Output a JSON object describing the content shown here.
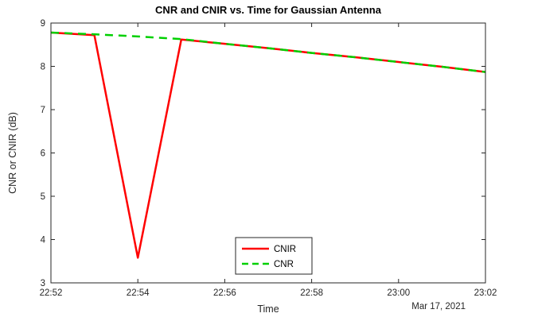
{
  "chart_data": {
    "type": "line",
    "title": "CNR and CNIR vs. Time for Gaussian Antenna",
    "xlabel": "Time",
    "ylabel": "CNR or CNIR (dB)",
    "date_annotation": "Mar 17, 2021",
    "xlim": [
      0,
      10
    ],
    "ylim": [
      3,
      9
    ],
    "grid": "off",
    "x_minutes": [
      0,
      1,
      2,
      3,
      4,
      5,
      6,
      7,
      8,
      9,
      10
    ],
    "x_tick_values": [
      0,
      2,
      4,
      6,
      8,
      10
    ],
    "x_tick_labels": [
      "22:52",
      "22:54",
      "22:56",
      "22:58",
      "23:00",
      "23:02"
    ],
    "y_tick_values": [
      3,
      4,
      5,
      6,
      7,
      8,
      9
    ],
    "y_tick_labels": [
      "3",
      "4",
      "5",
      "6",
      "7",
      "8",
      "9"
    ],
    "series": [
      {
        "name": "CNIR",
        "color": "#ff0000",
        "style": "solid",
        "width": 2.5,
        "values": [
          8.78,
          8.72,
          3.58,
          8.62,
          8.52,
          8.42,
          8.31,
          8.21,
          8.1,
          7.99,
          7.87
        ]
      },
      {
        "name": "CNR",
        "color": "#00d000",
        "style": "dashed",
        "width": 2.5,
        "values": [
          8.78,
          8.74,
          8.69,
          8.63,
          8.52,
          8.42,
          8.31,
          8.21,
          8.1,
          7.99,
          7.87
        ]
      }
    ],
    "legend": {
      "position": "south-center",
      "entries": [
        "CNIR",
        "CNR"
      ]
    },
    "axis_color": "#262626",
    "text_color": "#000000"
  }
}
